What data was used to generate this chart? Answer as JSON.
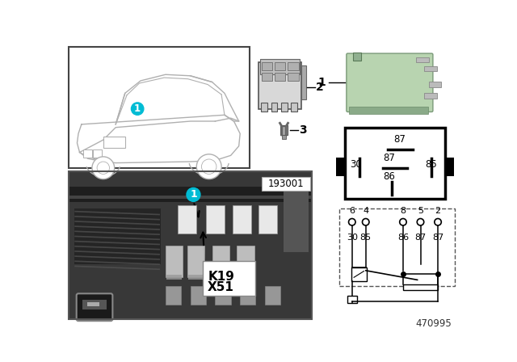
{
  "bg_color": "#ffffff",
  "part_number": "470995",
  "stamp": "193001",
  "relay_green": "#b8d4b0",
  "car_line_color": "#b0b0b0",
  "teal_color": "#00bcd4",
  "k19": "K19",
  "x51": "X51",
  "pin_diagram_labels": {
    "top87": "87",
    "mid87": "87",
    "30": "30",
    "85": "85",
    "86": "86"
  },
  "circuit_top_labels": [
    "6",
    "4",
    "8",
    "5",
    "2"
  ],
  "circuit_bot_labels": [
    "30",
    "85",
    "86",
    "87",
    "87"
  ],
  "photo_bg": "#404040",
  "photo_dark": "#303030",
  "photo_mid": "#555555",
  "photo_light": "#888888"
}
